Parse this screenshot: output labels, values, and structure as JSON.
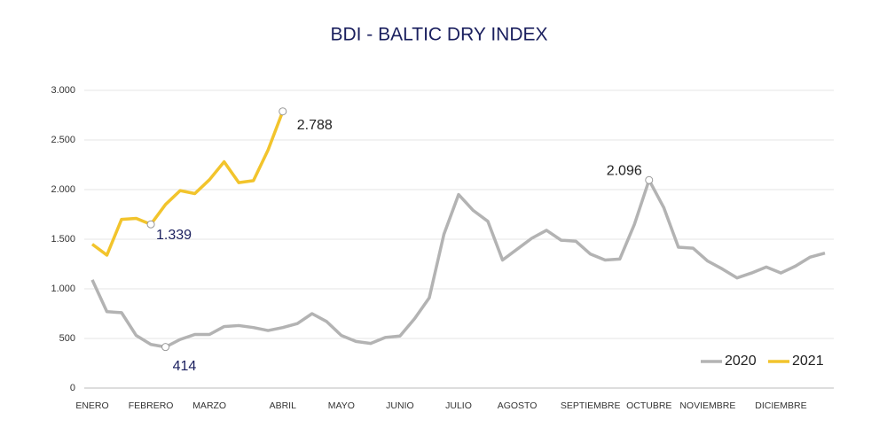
{
  "chart_data": {
    "type": "line",
    "title": "BDI - BALTIC DRY INDEX",
    "categories": [
      "ENERO",
      null,
      null,
      null,
      "FEBRERO",
      null,
      null,
      null,
      "MARZO",
      null,
      null,
      null,
      null,
      "ABRIL",
      null,
      null,
      null,
      "MAYO",
      null,
      null,
      null,
      "JUNIO",
      null,
      null,
      null,
      "JULIO",
      null,
      null,
      null,
      "AGOSTO",
      null,
      null,
      null,
      null,
      "SEPTIEMBRE",
      null,
      null,
      null,
      "OCTUBRE",
      null,
      null,
      null,
      "NOVIEMBRE",
      null,
      null,
      null,
      null,
      "DICIEMBRE",
      null,
      null,
      null
    ],
    "series": [
      {
        "name": "2020",
        "color": "#b3b3b3",
        "values": [
          1090,
          770,
          760,
          530,
          440,
          414,
          490,
          540,
          540,
          620,
          630,
          610,
          580,
          610,
          650,
          750,
          670,
          530,
          470,
          450,
          510,
          525,
          700,
          910,
          1550,
          1950,
          1790,
          1680,
          1290,
          1400,
          1510,
          1590,
          1490,
          1480,
          1350,
          1290,
          1300,
          1650,
          2096,
          1820,
          1420,
          1410,
          1280,
          1200,
          1110,
          1160,
          1220,
          1160,
          1230,
          1320,
          1360
        ],
        "value_labels": [
          null,
          null,
          null,
          null,
          null,
          "414",
          null,
          null,
          null,
          null,
          null,
          null,
          null,
          null,
          null,
          null,
          null,
          null,
          null,
          null,
          null,
          null,
          null,
          null,
          null,
          null,
          null,
          null,
          null,
          null,
          null,
          null,
          null,
          null,
          null,
          null,
          null,
          null,
          "2.096",
          null,
          null,
          null,
          null,
          null,
          null,
          null,
          null,
          null,
          null,
          null,
          null
        ]
      },
      {
        "name": "2021",
        "color": "#f2c42c",
        "values": [
          1450,
          1340,
          1700,
          1710,
          1650,
          1850,
          1990,
          1960,
          2100,
          2280,
          2070,
          2090,
          2400,
          2788,
          null,
          null,
          null,
          null,
          null,
          null,
          null,
          null,
          null,
          null,
          null,
          null,
          null,
          null,
          null,
          null,
          null,
          null,
          null,
          null,
          null,
          null,
          null,
          null,
          null,
          null,
          null,
          null,
          null,
          null,
          null,
          null,
          null,
          null,
          null,
          null,
          null
        ],
        "value_labels": [
          null,
          null,
          null,
          null,
          null,
          null,
          null,
          null,
          null,
          null,
          null,
          null,
          null,
          "2.788",
          null,
          null,
          null,
          null,
          null,
          null,
          null,
          null,
          null,
          null,
          null,
          null,
          null,
          null,
          null,
          null,
          null,
          null,
          null,
          null,
          null,
          null,
          null,
          null,
          null,
          null,
          null,
          null,
          null,
          null,
          null,
          null,
          null,
          null,
          null,
          null,
          null
        ]
      }
    ],
    "annotations": [
      "1.339"
    ],
    "ylim": [
      0,
      3000
    ],
    "yticks": [
      0,
      500,
      {
        "value": 1000,
        "label": "1.000"
      },
      {
        "value": 1500,
        "label": "1.500"
      },
      {
        "value": 2000,
        "label": "2.000"
      },
      {
        "value": 2500,
        "label": "2.500"
      },
      {
        "value": 3000,
        "label": "3.000"
      }
    ],
    "grid": true,
    "legend": "bottom-right"
  }
}
